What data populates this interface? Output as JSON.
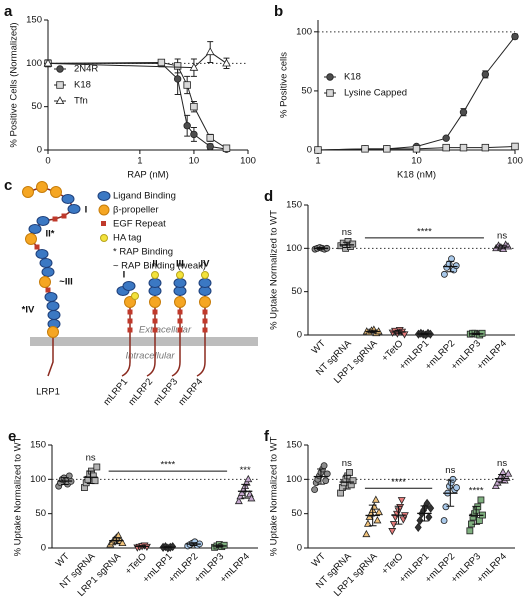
{
  "chart_data": [
    {
      "label": "a",
      "type": "scatter",
      "xscale": "log",
      "xlabel": "RAP (nM)",
      "ylabel": "% Positive Cells (Normalized)",
      "xlim": [
        0.02,
        100
      ],
      "xticks": [
        {
          "value": 0.02,
          "label": "0"
        },
        1,
        10,
        100
      ],
      "ylim": [
        0,
        150
      ],
      "yticks": [
        0,
        50,
        100,
        150
      ],
      "refline": 100,
      "legend": "center-left",
      "series": [
        {
          "name": "2N4R",
          "marker": "circle",
          "color": "#4d4d4d",
          "x": [
            0.02,
            2.5,
            5,
            7.5,
            10,
            20,
            40
          ],
          "values": [
            100,
            100,
            82,
            28,
            18,
            4,
            1
          ],
          "errors": [
            3,
            4,
            18,
            12,
            8,
            3,
            1
          ]
        },
        {
          "name": "K18",
          "marker": "square",
          "color": "#d9d9d9",
          "x": [
            0.02,
            2.5,
            5,
            7.5,
            10,
            20,
            40
          ],
          "values": [
            100,
            101,
            97,
            75,
            50,
            14,
            2
          ],
          "errors": [
            3,
            3,
            8,
            10,
            6,
            4,
            1
          ]
        },
        {
          "name": "Tfn",
          "marker": "triangle",
          "color": "#ffffff",
          "x": [
            0.02,
            10,
            20,
            40
          ],
          "values": [
            100,
            95,
            113,
            100
          ],
          "errors": [
            4,
            10,
            12,
            6
          ]
        }
      ]
    },
    {
      "label": "b",
      "type": "scatter",
      "xscale": "log",
      "xlabel": "K18 (nM)",
      "ylabel": "% Positive cells",
      "xlim": [
        1,
        100
      ],
      "xticks": [
        1,
        10,
        100
      ],
      "ylim": [
        0,
        110
      ],
      "yticks": [
        0,
        50,
        100
      ],
      "refline": 100,
      "legend": "center-left",
      "series": [
        {
          "name": "K18",
          "marker": "circle",
          "color": "#4d4d4d",
          "x": [
            1,
            3,
            5,
            10,
            20,
            30,
            50,
            100
          ],
          "values": [
            0,
            1,
            1,
            3,
            10,
            32,
            64,
            96
          ],
          "errors": [
            0,
            0.5,
            0.5,
            1,
            1,
            3,
            3,
            2
          ]
        },
        {
          "name": "Lysine Capped",
          "marker": "square",
          "color": "#d9d9d9",
          "x": [
            1,
            3,
            5,
            10,
            20,
            30,
            50,
            100
          ],
          "values": [
            0,
            1,
            1,
            1,
            2,
            2,
            2,
            3
          ],
          "errors": [
            0,
            0.5,
            0.5,
            0.5,
            0.5,
            0.5,
            0.5,
            0.5
          ]
        }
      ]
    },
    {
      "label": "d",
      "type": "dot",
      "ylabel": "% Uptake Normalized to WT",
      "ylim": [
        0,
        150
      ],
      "yticks": [
        0,
        50,
        100,
        150
      ],
      "refline": 100,
      "categories": [
        "WT",
        "NT sgRNA",
        "LRP1 sgRNA",
        "+TetO",
        "+mLRP1",
        "+mLRP2",
        "+mLRP3",
        "+mLRP4"
      ],
      "colors": [
        "#8c8c8c",
        "#b3b3b3",
        "#f0c27a",
        "#e57b7b",
        "#333333",
        "#a9c9ea",
        "#7fb07f",
        "#c6a9cf"
      ],
      "markers": [
        "circle",
        "square",
        "triangle",
        "triangle-down",
        "diamond",
        "circle",
        "square",
        "triangle"
      ],
      "points": [
        [
          99,
          100,
          101,
          100,
          99,
          100
        ],
        [
          103,
          106,
          100,
          108,
          102,
          105
        ],
        [
          4,
          3,
          5,
          6,
          2,
          4
        ],
        [
          3,
          5,
          2,
          6,
          4,
          1
        ],
        [
          1,
          2,
          1,
          0,
          2,
          1
        ],
        [
          70,
          78,
          82,
          88,
          75,
          80
        ],
        [
          1,
          2,
          2,
          1,
          0,
          2
        ],
        [
          100,
          103,
          101,
          99,
          104,
          102
        ]
      ],
      "values": [
        100,
        104,
        4,
        3.5,
        1.2,
        79,
        1.3,
        101.5
      ],
      "errors": [
        1,
        3,
        1.5,
        2,
        0.8,
        6,
        0.8,
        2
      ],
      "annotations": [
        {
          "text": "ns",
          "category": "NT sgRNA"
        },
        {
          "text": "****",
          "from": "LRP1 sgRNA",
          "to": "+mLRP3",
          "y": 112
        },
        {
          "text": "ns",
          "category": "+mLRP4"
        }
      ]
    },
    {
      "label": "e",
      "type": "dot",
      "ylabel": "% Uptake Normalized to WT",
      "ylim": [
        0,
        150
      ],
      "yticks": [
        0,
        50,
        100,
        150
      ],
      "refline": 100,
      "categories": [
        "WT",
        "NT sgRNA",
        "LRP1 sgRNA",
        "+TetO",
        "+mLRP1",
        "+mLRP2",
        "+mLRP3",
        "+mLRP4"
      ],
      "colors": [
        "#8c8c8c",
        "#b3b3b3",
        "#f0c27a",
        "#e57b7b",
        "#333333",
        "#a9c9ea",
        "#7fb07f",
        "#c6a9cf"
      ],
      "markers": [
        "circle",
        "square",
        "triangle",
        "triangle-down",
        "diamond",
        "circle",
        "square",
        "triangle"
      ],
      "points": [
        [
          90,
          95,
          100,
          102,
          98,
          93,
          105,
          97
        ],
        [
          88,
          95,
          100,
          108,
          112,
          105,
          98,
          118
        ],
        [
          5,
          8,
          12,
          15,
          18,
          10,
          7
        ],
        [
          1,
          2,
          3,
          4,
          2
        ],
        [
          1,
          2,
          0,
          1,
          2
        ],
        [
          3,
          5,
          7,
          9,
          4,
          6
        ],
        [
          1,
          3,
          5,
          2,
          4
        ],
        [
          68,
          75,
          80,
          85,
          90,
          95,
          100,
          78,
          72
        ]
      ],
      "values": [
        97.5,
        103,
        10.7,
        2.4,
        1.2,
        5.7,
        3,
        82.6
      ],
      "errors": [
        5,
        9,
        4.5,
        1,
        0.8,
        2,
        1.5,
        10
      ],
      "annotations": [
        {
          "text": "ns",
          "category": "NT sgRNA"
        },
        {
          "text": "****",
          "from": "LRP1 sgRNA",
          "to": "+mLRP3",
          "y": 112
        },
        {
          "text": "***",
          "category": "+mLRP4"
        }
      ]
    },
    {
      "label": "f",
      "type": "dot",
      "ylabel": "% Uptake Normalized to WT",
      "ylim": [
        0,
        150
      ],
      "yticks": [
        0,
        50,
        100,
        150
      ],
      "refline": 100,
      "categories": [
        "WT",
        "NT sgRNA",
        "LRP1 sgRNA",
        "+TetO",
        "+mLRP1",
        "+mLRP2",
        "+mLRP3",
        "+mLRP4"
      ],
      "colors": [
        "#8c8c8c",
        "#b3b3b3",
        "#f0c27a",
        "#e57b7b",
        "#333333",
        "#a9c9ea",
        "#7fb07f",
        "#c6a9cf"
      ],
      "markers": [
        "circle",
        "square",
        "triangle",
        "triangle-down",
        "diamond",
        "circle",
        "square",
        "triangle"
      ],
      "points": [
        [
          85,
          95,
          100,
          105,
          110,
          115,
          120,
          98,
          108
        ],
        [
          80,
          88,
          95,
          100,
          105,
          110,
          92,
          98
        ],
        [
          20,
          35,
          45,
          50,
          55,
          60,
          70,
          40,
          52
        ],
        [
          25,
          35,
          45,
          50,
          55,
          60,
          70,
          42,
          48
        ],
        [
          30,
          40,
          50,
          55,
          60,
          65,
          45,
          58
        ],
        [
          40,
          60,
          80,
          90,
          95,
          100,
          85,
          88
        ],
        [
          25,
          35,
          45,
          50,
          55,
          60,
          40,
          70,
          48
        ],
        [
          90,
          95,
          100,
          105,
          110,
          98,
          102,
          108
        ]
      ],
      "values": [
        104,
        96,
        47.4,
        47.8,
        50.4,
        79.8,
        47.6,
        101
      ],
      "errors": [
        11,
        10,
        15,
        13,
        11,
        19,
        13,
        6
      ],
      "annotations": [
        {
          "text": "ns",
          "category": "NT sgRNA"
        },
        {
          "text": "****",
          "from": "LRP1 sgRNA",
          "to": "+mLRP1",
          "y": 87
        },
        {
          "text": "ns",
          "category": "+mLRP2"
        },
        {
          "text": "****",
          "category": "+mLRP3"
        },
        {
          "text": "ns",
          "category": "+mLRP4"
        }
      ]
    }
  ],
  "diagram": {
    "label": "c",
    "legend": [
      "Ligand Binding",
      "β-propeller",
      "EGF Repeat",
      "HA tag",
      "* RAP Binding",
      "~ RAP Binding (weak)"
    ],
    "extracellular": "Extracellular",
    "intracellular": "Intracellular",
    "receptor": "LRP1",
    "receptor_domains": [
      "I",
      "II*",
      "~III",
      "*IV"
    ],
    "constructs": [
      {
        "label": "mLRP1",
        "domain": "I"
      },
      {
        "label": "mLRP2",
        "domain": "II"
      },
      {
        "label": "mLRP3",
        "domain": "III"
      },
      {
        "label": "mLRP4",
        "domain": "IV"
      }
    ]
  }
}
